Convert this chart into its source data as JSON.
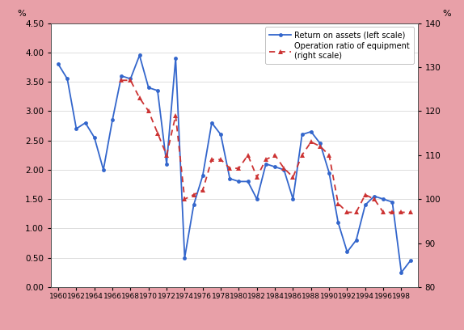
{
  "years": [
    1960,
    1961,
    1962,
    1963,
    1964,
    1965,
    1966,
    1967,
    1968,
    1969,
    1970,
    1971,
    1972,
    1973,
    1974,
    1975,
    1976,
    1977,
    1978,
    1979,
    1980,
    1981,
    1982,
    1983,
    1984,
    1985,
    1986,
    1987,
    1988,
    1989,
    1990,
    1991,
    1992,
    1993,
    1994,
    1995,
    1996,
    1997,
    1998,
    1999
  ],
  "return_on_assets": [
    3.8,
    3.55,
    2.7,
    2.8,
    2.55,
    2.0,
    2.85,
    3.6,
    3.55,
    3.95,
    3.4,
    3.35,
    2.1,
    3.9,
    0.5,
    1.4,
    1.9,
    2.8,
    2.6,
    1.85,
    1.8,
    1.8,
    1.5,
    2.1,
    2.05,
    2.0,
    1.5,
    2.6,
    2.65,
    2.45,
    1.95,
    1.1,
    0.6,
    0.8,
    1.4,
    1.55,
    1.5,
    1.45,
    0.25,
    0.45
  ],
  "operation_ratio": [
    null,
    null,
    null,
    null,
    null,
    null,
    null,
    127,
    127,
    123,
    120,
    115,
    110,
    119,
    100,
    101,
    102,
    109,
    109,
    107,
    107,
    110,
    105,
    109,
    110,
    107,
    105,
    110,
    113,
    112,
    110,
    99,
    97,
    97,
    101,
    100,
    97,
    97,
    97,
    97
  ],
  "bg_color": "#e8a0a8",
  "plot_bg_color": "#ffffff",
  "line1_color": "#3366cc",
  "line2_color": "#cc3333",
  "line1_label": "Return on assets (left scale)",
  "line2_label": "Operation ratio of equipment\n(right scale)",
  "left_ylim": [
    0.0,
    4.5
  ],
  "right_ylim": [
    80,
    140
  ],
  "left_yticks": [
    0.0,
    0.5,
    1.0,
    1.5,
    2.0,
    2.5,
    3.0,
    3.5,
    4.0,
    4.5
  ],
  "right_yticks": [
    80,
    90,
    100,
    110,
    120,
    130,
    140
  ],
  "ylabel_left": "%",
  "ylabel_right": "%",
  "xtick_years": [
    1960,
    1962,
    1964,
    1966,
    1968,
    1970,
    1972,
    1974,
    1976,
    1978,
    1980,
    1982,
    1984,
    1986,
    1988,
    1990,
    1992,
    1994,
    1996,
    1998
  ]
}
